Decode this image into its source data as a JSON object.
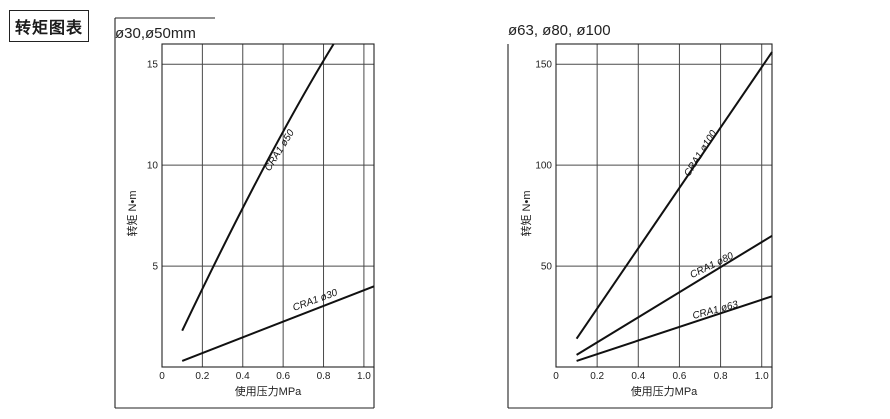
{
  "page": {
    "heading": "转矩图表"
  },
  "chart_data": [
    {
      "type": "line",
      "title": "ø30,ø50mm",
      "xlabel": "使用压力MPa",
      "ylabel": "转矩 N•m",
      "xlim": [
        0,
        1.05
      ],
      "ylim": [
        0,
        16
      ],
      "xticks": [
        0,
        0.2,
        0.4,
        0.6,
        0.8,
        1.0
      ],
      "xtick_labels": [
        "0",
        "0.2",
        "0.4",
        "0.6",
        "0.8",
        "1.0"
      ],
      "yticks": [
        5,
        10,
        15
      ],
      "ytick_labels": [
        "5",
        "10",
        "15"
      ],
      "grid": true,
      "series": [
        {
          "name": "CRA1 ø50",
          "x": [
            0.1,
            0.5,
            0.85
          ],
          "y": [
            1.8,
            9.8,
            16
          ]
        },
        {
          "name": "CRA1 ø30",
          "x": [
            0.1,
            1.05
          ],
          "y": [
            0.3,
            4.0
          ]
        }
      ]
    },
    {
      "type": "line",
      "title": "ø63, ø80, ø100",
      "xlabel": "使用压力MPa",
      "ylabel": "转矩 N•m",
      "xlim": [
        0,
        1.05
      ],
      "ylim": [
        0,
        160
      ],
      "xticks": [
        0,
        0.2,
        0.4,
        0.6,
        0.8,
        1.0
      ],
      "xtick_labels": [
        "0",
        "0.2",
        "0.4",
        "0.6",
        "0.8",
        "1.0"
      ],
      "yticks": [
        50,
        100,
        150
      ],
      "ytick_labels": [
        "50",
        "100",
        "150"
      ],
      "grid": true,
      "series": [
        {
          "name": "CRA1 ø100",
          "x": [
            0.1,
            1.05
          ],
          "y": [
            14,
            156
          ]
        },
        {
          "name": "CRA1 ø80",
          "x": [
            0.1,
            1.05
          ],
          "y": [
            6,
            65
          ]
        },
        {
          "name": "CRA1 ø63",
          "x": [
            0.1,
            1.05
          ],
          "y": [
            3,
            35
          ]
        }
      ]
    }
  ]
}
